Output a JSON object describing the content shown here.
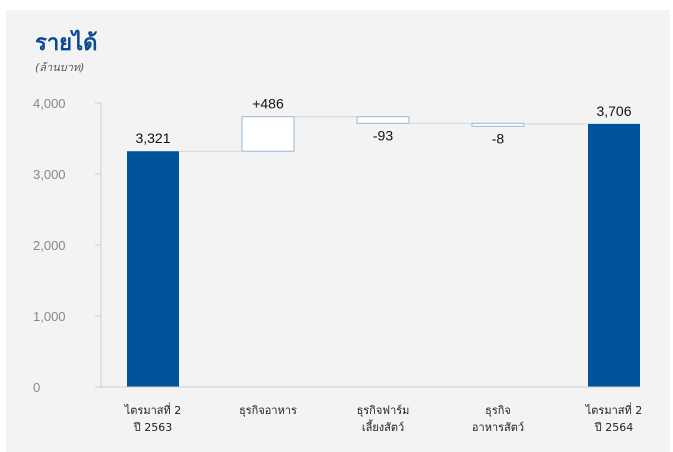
{
  "title": "รายได้",
  "subtitle": "(ล้านบาท)",
  "colors": {
    "total": "#00559a",
    "increase_fill": "#ffffff",
    "box_stroke": "#98b7d4",
    "connector": "#d4d4d4",
    "axis": "#cfcfcf",
    "background": "#f3f3f3"
  },
  "chart_data": {
    "type": "bar",
    "variant": "waterfall",
    "title": "รายได้",
    "subtitle": "(ล้านบาท)",
    "ylim": [
      0,
      4000
    ],
    "yticks": [
      "0",
      "1,000",
      "2,000",
      "3,000",
      "4,000"
    ],
    "grid": false,
    "categories": [
      [
        "ไตรมาสที่ 2",
        "ปี 2563"
      ],
      [
        "ธุรกิจอาหาร"
      ],
      [
        "ธุรกิจฟาร์ม",
        "เลี้ยงสัตว์"
      ],
      [
        "ธุรกิจ",
        "อาหารสัตว์"
      ],
      [
        "ไตรมาสที่ 2",
        "ปี 2564"
      ]
    ],
    "bars": [
      {
        "kind": "total",
        "value": 3321,
        "label": "3,321"
      },
      {
        "kind": "delta",
        "value": 486,
        "label": "+486"
      },
      {
        "kind": "delta",
        "value": -93,
        "label": "-93"
      },
      {
        "kind": "delta",
        "value": -8,
        "label": "-8"
      },
      {
        "kind": "total",
        "value": 3706,
        "label": "3,706"
      }
    ]
  }
}
